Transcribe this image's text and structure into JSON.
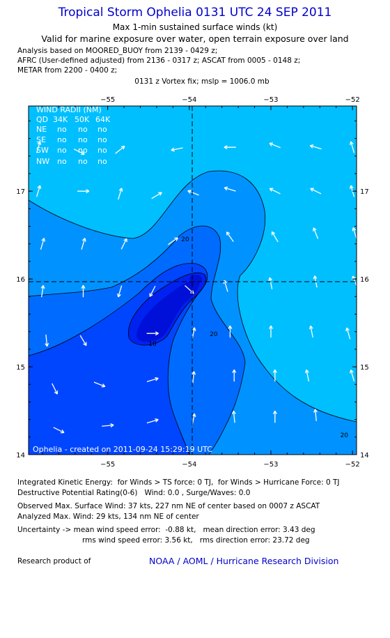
{
  "title": "Tropical Storm Ophelia 0131 UTC 24 SEP 2011",
  "subtitle": "Max 1-min sustained surface winds (kt)",
  "validity": "Valid for marine exposure over water, open terrain exposure over land",
  "sources": [
    "Analysis based on MOORED_BUOY from 2139 - 0429 z;",
    "AFRC (User-defined adjusted) from 2136 - 0317 z; ASCAT from 0005 - 0148 z;",
    "METAR from 2200 - 0400 z;"
  ],
  "fix_line": "0131 z Vortex fix; mslp = 1006.0 mb",
  "wind_radii": {
    "title": "WIND RADII (NM)",
    "header": [
      "QD",
      "34K",
      "50K",
      "64K"
    ],
    "rows": [
      [
        "NE",
        "no",
        "no",
        "no"
      ],
      [
        "SE",
        "no",
        "no",
        "no"
      ],
      [
        "SW",
        "no",
        "no",
        "no"
      ],
      [
        "NW",
        "no",
        "no",
        "no"
      ]
    ]
  },
  "credit": "Ophelia - created on 2011-09-24 15:29:19 UTC",
  "footer": {
    "ike": "Integrated Kinetic Energy:  for Winds > TS force: 0 TJ,  for Winds > Hurricane Force: 0 TJ",
    "dpr": "Destructive Potential Rating(0-6)   Wind: 0.0 , Surge/Waves: 0.0",
    "observed": "Observed Max. Surface Wind: 37 kts, 227 nm NE of center based on 0007 z ASCAT",
    "analyzed": "Analyzed Max. Wind: 29 kts, 134 nm NE of center",
    "uncert1": "Uncertainty -> mean wind speed error:  -0.88 kt,   mean direction error: 3.43 deg",
    "uncert2": "rms wind speed error: 3.56 kt,   rms direction error: 23.72 deg",
    "research": "Research product of",
    "noaa": "NOAA / AOML / Hurricane Research Division"
  },
  "colors": {
    "level_lt10": "#00bfff",
    "level_10_15": "#0093ff",
    "level_15_20": "#006cff",
    "level_20_25": "#0046ff",
    "level_25_30": "#0022f0",
    "level_gt30": "#0010d8",
    "title": "#0000cc"
  },
  "chart_data": {
    "type": "contour",
    "x_axis": {
      "range": [
        -55.97,
        -51.95
      ],
      "ticks": [
        -55,
        -54,
        -53,
        -52
      ]
    },
    "y_axis": {
      "range": [
        14,
        17.97
      ],
      "ticks": [
        14,
        15,
        16,
        17
      ]
    },
    "center": {
      "lon": -54.0,
      "lat": 15.97
    },
    "contour_labels": [
      {
        "text": "20",
        "lon": -54.1,
        "lat": 16.43
      },
      {
        "text": "20",
        "lon": -53.75,
        "lat": 15.35
      },
      {
        "text": "10",
        "lon": -54.5,
        "lat": 15.24
      },
      {
        "text": "20",
        "lon": -52.15,
        "lat": 14.2
      }
    ],
    "wind_vectors": [
      {
        "lon": -55.85,
        "lat": 17.5,
        "u": 0.3,
        "v": 1
      },
      {
        "lon": -55.35,
        "lat": 17.45,
        "u": 1,
        "v": -0.5
      },
      {
        "lon": -54.85,
        "lat": 17.47,
        "u": 1,
        "v": 0.8
      },
      {
        "lon": -54.15,
        "lat": 17.48,
        "u": -1,
        "v": -0.2
      },
      {
        "lon": -53.5,
        "lat": 17.5,
        "u": -1,
        "v": 0
      },
      {
        "lon": -52.95,
        "lat": 17.52,
        "u": -1,
        "v": 0.4
      },
      {
        "lon": -52.45,
        "lat": 17.5,
        "u": -1,
        "v": 0.3
      },
      {
        "lon": -52.0,
        "lat": 17.5,
        "u": -0.3,
        "v": 1
      },
      {
        "lon": -55.85,
        "lat": 17.0,
        "u": 0.3,
        "v": 1
      },
      {
        "lon": -55.3,
        "lat": 17.0,
        "u": 1,
        "v": 0
      },
      {
        "lon": -54.85,
        "lat": 16.97,
        "u": 0.3,
        "v": 1
      },
      {
        "lon": -54.4,
        "lat": 16.95,
        "u": 1,
        "v": 0.6
      },
      {
        "lon": -53.95,
        "lat": 16.98,
        "u": -1,
        "v": 0.4
      },
      {
        "lon": -53.5,
        "lat": 17.02,
        "u": -1,
        "v": 0.3
      },
      {
        "lon": -52.95,
        "lat": 17.0,
        "u": -1,
        "v": 0.5
      },
      {
        "lon": -52.45,
        "lat": 17.0,
        "u": -1,
        "v": 0.5
      },
      {
        "lon": -52.0,
        "lat": 17.0,
        "u": -0.3,
        "v": 1
      },
      {
        "lon": -55.8,
        "lat": 16.4,
        "u": 0.3,
        "v": 1
      },
      {
        "lon": -55.3,
        "lat": 16.4,
        "u": 0.3,
        "v": 1
      },
      {
        "lon": -54.8,
        "lat": 16.4,
        "u": 0.5,
        "v": 1
      },
      {
        "lon": -54.2,
        "lat": 16.43,
        "u": 1,
        "v": 0.7
      },
      {
        "lon": -53.5,
        "lat": 16.48,
        "u": -0.7,
        "v": 1
      },
      {
        "lon": -52.95,
        "lat": 16.48,
        "u": -0.6,
        "v": 1
      },
      {
        "lon": -52.45,
        "lat": 16.52,
        "u": -0.4,
        "v": 1
      },
      {
        "lon": -51.97,
        "lat": 16.52,
        "u": -0.3,
        "v": 1
      },
      {
        "lon": -55.8,
        "lat": 15.86,
        "u": 0.15,
        "v": 1
      },
      {
        "lon": -55.3,
        "lat": 15.86,
        "u": 0,
        "v": 1
      },
      {
        "lon": -54.85,
        "lat": 15.86,
        "u": -0.3,
        "v": -1
      },
      {
        "lon": -54.45,
        "lat": 15.86,
        "u": -0.5,
        "v": -1
      },
      {
        "lon": -54.0,
        "lat": 15.88,
        "u": 1,
        "v": -0.9
      },
      {
        "lon": -53.55,
        "lat": 15.92,
        "u": -0.3,
        "v": 1
      },
      {
        "lon": -53.0,
        "lat": 15.95,
        "u": -0.2,
        "v": 1
      },
      {
        "lon": -52.45,
        "lat": 15.97,
        "u": -0.2,
        "v": 1
      },
      {
        "lon": -51.97,
        "lat": 15.97,
        "u": -0.4,
        "v": 1
      },
      {
        "lon": -55.75,
        "lat": 15.3,
        "u": 0.1,
        "v": -1
      },
      {
        "lon": -55.3,
        "lat": 15.3,
        "u": 0.6,
        "v": -1
      },
      {
        "lon": -54.45,
        "lat": 15.38,
        "u": 1,
        "v": 0
      },
      {
        "lon": -53.95,
        "lat": 15.38,
        "u": 0.2,
        "v": 1
      },
      {
        "lon": -53.5,
        "lat": 15.4,
        "u": 0,
        "v": 1
      },
      {
        "lon": -53.0,
        "lat": 15.4,
        "u": 0,
        "v": 1
      },
      {
        "lon": -52.5,
        "lat": 15.4,
        "u": -0.2,
        "v": 1
      },
      {
        "lon": -52.05,
        "lat": 15.38,
        "u": -0.3,
        "v": 1
      },
      {
        "lon": -55.65,
        "lat": 14.75,
        "u": 0.5,
        "v": -1
      },
      {
        "lon": -55.1,
        "lat": 14.8,
        "u": 1,
        "v": -0.4
      },
      {
        "lon": -54.45,
        "lat": 14.85,
        "u": 1,
        "v": 0.3
      },
      {
        "lon": -53.95,
        "lat": 14.88,
        "u": 0.1,
        "v": 1
      },
      {
        "lon": -53.45,
        "lat": 14.9,
        "u": 0,
        "v": 1
      },
      {
        "lon": -52.95,
        "lat": 14.9,
        "u": 0,
        "v": 1
      },
      {
        "lon": -52.55,
        "lat": 14.9,
        "u": -0.2,
        "v": 1
      },
      {
        "lon": -52.0,
        "lat": 14.9,
        "u": -0.3,
        "v": 1
      },
      {
        "lon": -55.6,
        "lat": 14.28,
        "u": 1,
        "v": -0.5
      },
      {
        "lon": -55.0,
        "lat": 14.33,
        "u": 1,
        "v": 0.1
      },
      {
        "lon": -54.45,
        "lat": 14.38,
        "u": 1,
        "v": 0.3
      },
      {
        "lon": -53.95,
        "lat": 14.4,
        "u": 0.2,
        "v": 1
      },
      {
        "lon": -53.45,
        "lat": 14.43,
        "u": -0.1,
        "v": 1
      },
      {
        "lon": -52.95,
        "lat": 14.43,
        "u": 0,
        "v": 1
      },
      {
        "lon": -52.45,
        "lat": 14.45,
        "u": -0.1,
        "v": 1
      }
    ]
  }
}
